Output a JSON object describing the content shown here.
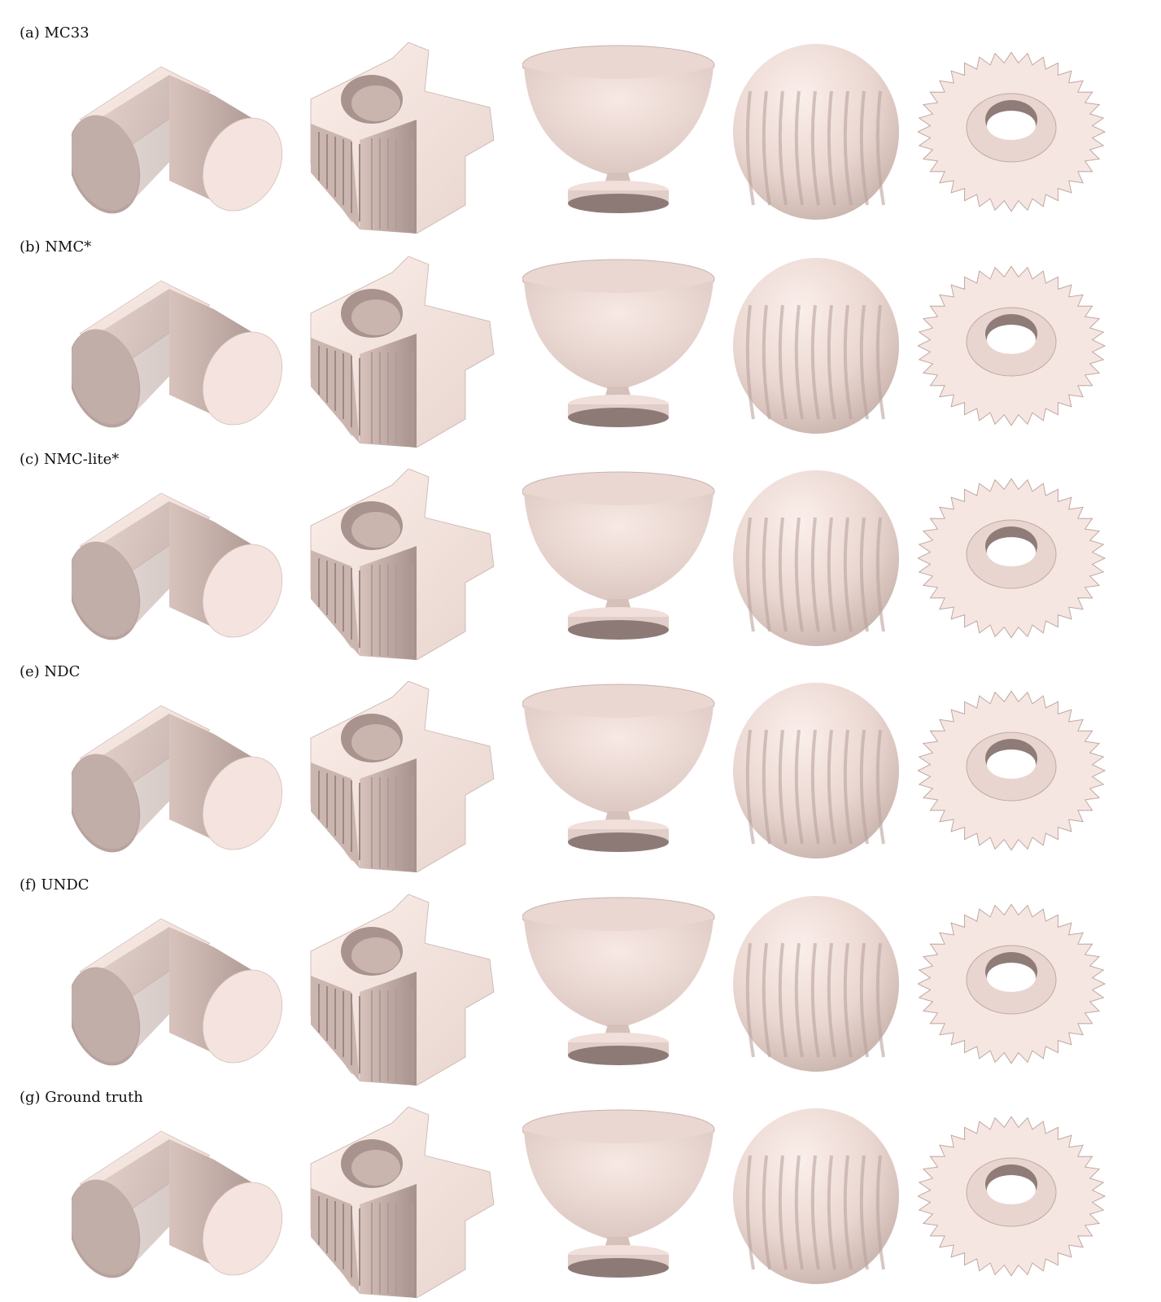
{
  "colors": {
    "surface": "#f7e7e2",
    "surface_mid": "#d9c3bd",
    "surface_dark": "#9b8782",
    "outline": "#7c6b67"
  },
  "columns": [
    {
      "name": "pipe-elbow"
    },
    {
      "name": "mechanical-part"
    },
    {
      "name": "goblet"
    },
    {
      "name": "ridged-sphere"
    },
    {
      "name": "gear"
    }
  ],
  "rows": [
    {
      "label": "(a) MC33"
    },
    {
      "label": "(b) NMC*"
    },
    {
      "label": "(c) NMC-lite*"
    },
    {
      "label": "(e) NDC"
    },
    {
      "label": "(f) UNDC"
    },
    {
      "label": "(g) Ground truth"
    }
  ]
}
